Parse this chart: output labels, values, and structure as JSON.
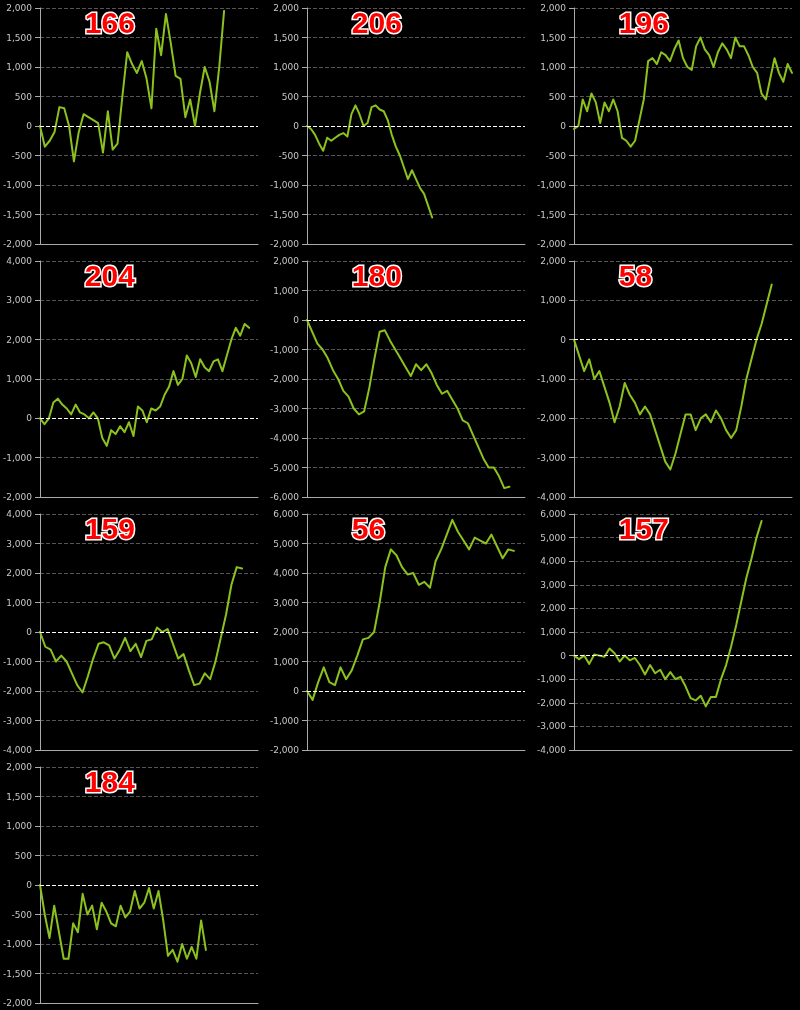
{
  "chart_data": [
    {
      "type": "line",
      "title": "166",
      "categories": [
        null,
        null,
        null,
        null,
        null,
        null,
        null,
        null,
        null,
        null,
        null,
        null,
        null,
        null,
        null,
        null,
        null,
        null,
        null,
        null,
        null,
        null,
        null,
        null,
        null,
        null,
        null,
        null,
        null,
        null,
        null,
        null,
        null,
        null,
        null,
        null,
        null,
        null,
        null,
        null,
        null,
        null,
        null,
        null,
        null,
        null
      ],
      "series": [
        {
          "color": "#8cc21e",
          "values": [
            0,
            -350,
            -250,
            -100,
            320,
            300,
            0,
            -600,
            -100,
            200,
            150,
            100,
            50,
            -450,
            250,
            -400,
            -300,
            500,
            1250,
            1050,
            900,
            1100,
            800,
            300,
            1650,
            1200,
            1900,
            1400,
            850,
            800,
            150,
            450,
            0,
            550,
            1000,
            750,
            250,
            1000,
            1950,
            null,
            null,
            null,
            null,
            null,
            null,
            null
          ]
        }
      ],
      "ylim": [
        -2000,
        2000
      ],
      "yticks": [
        {
          "value": -2000,
          "label": "-2,000"
        },
        {
          "value": -1500,
          "label": "-1,500"
        },
        {
          "value": -1000,
          "label": "-1,000"
        },
        -500,
        0,
        500,
        {
          "value": 1000,
          "label": "1,000"
        },
        {
          "value": 1500,
          "label": "1,500"
        },
        {
          "value": 2000,
          "label": "2,000"
        }
      ],
      "grid": "y",
      "tick_labels": "y",
      "marker": "none",
      "line_style": "solid",
      "ref_lines": [
        {
          "axis": "y",
          "value": 0,
          "color": "#ffffff",
          "line_style": "dashed"
        }
      ]
    },
    {
      "type": "line",
      "title": "206",
      "categories": [
        null,
        null,
        null,
        null,
        null,
        null,
        null,
        null,
        null,
        null,
        null,
        null,
        null,
        null,
        null,
        null,
        null,
        null,
        null,
        null,
        null,
        null,
        null,
        null,
        null,
        null,
        null,
        null,
        null,
        null,
        null,
        null,
        null,
        null,
        null,
        null,
        null,
        null,
        null,
        null,
        null,
        null,
        null,
        null,
        null,
        null,
        null,
        null,
        null,
        null,
        null,
        null,
        null,
        null,
        null
      ],
      "series": [
        {
          "color": "#8cc21e",
          "values": [
            0,
            -50,
            -150,
            -300,
            -420,
            -200,
            -250,
            -200,
            -150,
            -120,
            -180,
            200,
            350,
            200,
            0,
            50,
            320,
            350,
            280,
            250,
            100,
            -150,
            -350,
            -500,
            -700,
            -900,
            -750,
            -900,
            -1050,
            -1150,
            -1350,
            -1550,
            null,
            null,
            null,
            null,
            null,
            null,
            null,
            null,
            null,
            null,
            null,
            null,
            null,
            null,
            null,
            null,
            null,
            null,
            null,
            null,
            null,
            null,
            null
          ]
        }
      ],
      "ylim": [
        -2000,
        2000
      ],
      "yticks": [
        {
          "value": -2000,
          "label": "-2,000"
        },
        {
          "value": -1500,
          "label": "-1,500"
        },
        {
          "value": -1000,
          "label": "-1,000"
        },
        -500,
        0,
        500,
        {
          "value": 1000,
          "label": "1,000"
        },
        {
          "value": 1500,
          "label": "1,500"
        },
        {
          "value": 2000,
          "label": "2,000"
        }
      ],
      "grid": "y",
      "tick_labels": "y",
      "marker": "none",
      "line_style": "solid",
      "ref_lines": [
        {
          "axis": "y",
          "value": 0,
          "color": "#ffffff",
          "line_style": "dashed"
        }
      ]
    },
    {
      "type": "line",
      "title": "196",
      "categories": [
        null,
        null,
        null,
        null,
        null,
        null,
        null,
        null,
        null,
        null,
        null,
        null,
        null,
        null,
        null,
        null,
        null,
        null,
        null,
        null,
        null,
        null,
        null,
        null,
        null,
        null,
        null,
        null,
        null,
        null,
        null,
        null,
        null,
        null,
        null,
        null,
        null,
        null,
        null,
        null,
        null,
        null,
        null,
        null,
        null,
        null,
        null,
        null,
        null,
        null,
        null
      ],
      "series": [
        {
          "color": "#8cc21e",
          "values": [
            -50,
            0,
            450,
            250,
            550,
            400,
            50,
            400,
            250,
            450,
            250,
            -200,
            -250,
            -350,
            -250,
            100,
            450,
            1100,
            1150,
            1050,
            1250,
            1200,
            1100,
            1300,
            1450,
            1150,
            1000,
            950,
            1350,
            1500,
            1300,
            1200,
            1000,
            1250,
            1400,
            1300,
            1150,
            1500,
            1350,
            1350,
            1200,
            1000,
            900,
            550,
            450,
            800,
            1150,
            900,
            750,
            1050,
            900
          ]
        }
      ],
      "ylim": [
        -2000,
        2000
      ],
      "yticks": [
        {
          "value": -2000,
          "label": "-2,000"
        },
        {
          "value": -1500,
          "label": "-1,500"
        },
        {
          "value": -1000,
          "label": "-1,000"
        },
        -500,
        0,
        500,
        {
          "value": 1000,
          "label": "1,000"
        },
        {
          "value": 1500,
          "label": "1,500"
        },
        {
          "value": 2000,
          "label": "2,000"
        }
      ],
      "grid": "y",
      "tick_labels": "y",
      "marker": "none",
      "line_style": "solid",
      "ref_lines": [
        {
          "axis": "y",
          "value": 0,
          "color": "#ffffff",
          "line_style": "dashed"
        }
      ]
    },
    {
      "type": "line",
      "title": "204",
      "categories": [
        null,
        null,
        null,
        null,
        null,
        null,
        null,
        null,
        null,
        null,
        null,
        null,
        null,
        null,
        null,
        null,
        null,
        null,
        null,
        null,
        null,
        null,
        null,
        null,
        null,
        null,
        null,
        null,
        null,
        null,
        null,
        null,
        null,
        null,
        null,
        null,
        null,
        null,
        null,
        null,
        null,
        null,
        null,
        null,
        null,
        null,
        null,
        null,
        null,
        null
      ],
      "series": [
        {
          "color": "#8cc21e",
          "values": [
            0,
            -150,
            0,
            400,
            500,
            350,
            250,
            100,
            350,
            150,
            100,
            0,
            150,
            0,
            -500,
            -700,
            -300,
            -400,
            -200,
            -350,
            -100,
            -450,
            300,
            200,
            -100,
            250,
            200,
            300,
            600,
            800,
            1200,
            850,
            1000,
            1600,
            1400,
            1050,
            1500,
            1300,
            1200,
            1450,
            1500,
            1200,
            1600,
            2000,
            2300,
            2100,
            2400,
            2300,
            null,
            null
          ]
        }
      ],
      "ylim": [
        -2000,
        4000
      ],
      "yticks": [
        {
          "value": -2000,
          "label": "-2,000"
        },
        {
          "value": -1000,
          "label": "-1,000"
        },
        0,
        {
          "value": 1000,
          "label": "1,000"
        },
        {
          "value": 2000,
          "label": "2,000"
        },
        {
          "value": 3000,
          "label": "3,000"
        },
        {
          "value": 4000,
          "label": "4,000"
        }
      ],
      "grid": "y",
      "tick_labels": "y",
      "marker": "none",
      "line_style": "solid",
      "ref_lines": [
        {
          "axis": "y",
          "value": 0,
          "color": "#ffffff",
          "line_style": "dashed"
        }
      ]
    },
    {
      "type": "line",
      "title": "180",
      "categories": [
        null,
        null,
        null,
        null,
        null,
        null,
        null,
        null,
        null,
        null,
        null,
        null,
        null,
        null,
        null,
        null,
        null,
        null,
        null,
        null,
        null,
        null,
        null,
        null,
        null,
        null,
        null,
        null,
        null,
        null,
        null,
        null,
        null,
        null,
        null,
        null,
        null,
        null,
        null,
        null,
        null,
        null,
        null
      ],
      "series": [
        {
          "color": "#8cc21e",
          "values": [
            0,
            -400,
            -800,
            -1000,
            -1300,
            -1700,
            -2000,
            -2400,
            -2600,
            -3000,
            -3200,
            -3100,
            -2300,
            -1300,
            -400,
            -350,
            -700,
            -1000,
            -1300,
            -1600,
            -1900,
            -1500,
            -1700,
            -1500,
            -1800,
            -2200,
            -2500,
            -2400,
            -2700,
            -3000,
            -3400,
            -3500,
            -3900,
            -4300,
            -4700,
            -5000,
            -5000,
            -5300,
            -5700,
            -5650,
            null,
            null,
            null
          ]
        }
      ],
      "ylim": [
        -6000,
        2000
      ],
      "yticks": [
        {
          "value": -6000,
          "label": "-6,000"
        },
        {
          "value": -5000,
          "label": "-5,000"
        },
        {
          "value": -4000,
          "label": "-4,000"
        },
        {
          "value": -3000,
          "label": "-3,000"
        },
        {
          "value": -2000,
          "label": "-2,000"
        },
        {
          "value": -1000,
          "label": "-1,000"
        },
        0,
        {
          "value": 1000,
          "label": "1,000"
        },
        {
          "value": 2000,
          "label": "2,000"
        }
      ],
      "grid": "y",
      "tick_labels": "y",
      "marker": "none",
      "line_style": "solid",
      "ref_lines": [
        {
          "axis": "y",
          "value": 0,
          "color": "#ffffff",
          "line_style": "dashed"
        }
      ]
    },
    {
      "type": "line",
      "title": "58",
      "categories": [
        null,
        null,
        null,
        null,
        null,
        null,
        null,
        null,
        null,
        null,
        null,
        null,
        null,
        null,
        null,
        null,
        null,
        null,
        null,
        null,
        null,
        null,
        null,
        null,
        null,
        null,
        null,
        null,
        null,
        null,
        null,
        null,
        null,
        null,
        null,
        null,
        null,
        null,
        null,
        null,
        null,
        null,
        null,
        null
      ],
      "series": [
        {
          "color": "#8cc21e",
          "values": [
            0,
            -400,
            -800,
            -500,
            -1000,
            -800,
            -1200,
            -1600,
            -2100,
            -1700,
            -1100,
            -1400,
            -1600,
            -1900,
            -1700,
            -1900,
            -2300,
            -2700,
            -3100,
            -3300,
            -2900,
            -2400,
            -1900,
            -1900,
            -2300,
            -2000,
            -1900,
            -2100,
            -1800,
            -2000,
            -2300,
            -2500,
            -2300,
            -1700,
            -1000,
            -500,
            0,
            400,
            900,
            1400,
            null,
            null,
            null,
            null
          ]
        }
      ],
      "ylim": [
        -4000,
        2000
      ],
      "yticks": [
        {
          "value": -4000,
          "label": "-4,000"
        },
        {
          "value": -3000,
          "label": "-3,000"
        },
        {
          "value": -2000,
          "label": "-2,000"
        },
        {
          "value": -1000,
          "label": "-1,000"
        },
        0,
        {
          "value": 1000,
          "label": "1,000"
        },
        {
          "value": 2000,
          "label": "2,000"
        }
      ],
      "grid": "y",
      "tick_labels": "y",
      "marker": "none",
      "line_style": "solid",
      "ref_lines": [
        {
          "axis": "y",
          "value": 0,
          "color": "#ffffff",
          "line_style": "dashed"
        }
      ]
    },
    {
      "type": "line",
      "title": "159",
      "categories": [
        null,
        null,
        null,
        null,
        null,
        null,
        null,
        null,
        null,
        null,
        null,
        null,
        null,
        null,
        null,
        null,
        null,
        null,
        null,
        null,
        null,
        null,
        null,
        null,
        null,
        null,
        null,
        null,
        null,
        null,
        null,
        null,
        null,
        null,
        null,
        null,
        null,
        null,
        null,
        null,
        null,
        null
      ],
      "series": [
        {
          "color": "#8cc21e",
          "values": [
            0,
            -500,
            -600,
            -1000,
            -800,
            -1000,
            -1400,
            -1800,
            -2050,
            -1500,
            -900,
            -400,
            -350,
            -450,
            -900,
            -600,
            -200,
            -650,
            -400,
            -850,
            -300,
            -250,
            150,
            0,
            100,
            -400,
            -900,
            -750,
            -1300,
            -1800,
            -1750,
            -1400,
            -1600,
            -1000,
            -200,
            600,
            1600,
            2200,
            2150,
            null,
            null,
            null
          ]
        }
      ],
      "ylim": [
        -4000,
        4000
      ],
      "yticks": [
        {
          "value": -4000,
          "label": "-4,000"
        },
        {
          "value": -3000,
          "label": "-3,000"
        },
        {
          "value": -2000,
          "label": "-2,000"
        },
        {
          "value": -1000,
          "label": "-1,000"
        },
        0,
        {
          "value": 1000,
          "label": "1,000"
        },
        {
          "value": 2000,
          "label": "2,000"
        },
        {
          "value": 3000,
          "label": "3,000"
        },
        {
          "value": 4000,
          "label": "4,000"
        }
      ],
      "grid": "y",
      "tick_labels": "y",
      "marker": "none",
      "line_style": "solid",
      "ref_lines": [
        {
          "axis": "y",
          "value": 0,
          "color": "#ffffff",
          "line_style": "dashed"
        }
      ]
    },
    {
      "type": "line",
      "title": "56",
      "categories": [
        null,
        null,
        null,
        null,
        null,
        null,
        null,
        null,
        null,
        null,
        null,
        null,
        null,
        null,
        null,
        null,
        null,
        null,
        null,
        null,
        null,
        null,
        null,
        null,
        null,
        null,
        null,
        null,
        null,
        null,
        null,
        null,
        null,
        null,
        null,
        null,
        null,
        null,
        null,
        null
      ],
      "series": [
        {
          "color": "#8cc21e",
          "values": [
            0,
            -300,
            300,
            800,
            300,
            200,
            800,
            400,
            700,
            1200,
            1750,
            1800,
            2000,
            3000,
            4200,
            4800,
            4600,
            4200,
            3950,
            4000,
            3600,
            3700,
            3500,
            4400,
            4800,
            5300,
            5800,
            5400,
            5100,
            4800,
            5200,
            5100,
            5000,
            5300,
            4900,
            4500,
            4800,
            4750,
            null,
            null
          ]
        }
      ],
      "ylim": [
        -2000,
        6000
      ],
      "yticks": [
        {
          "value": -2000,
          "label": "-2,000"
        },
        {
          "value": -1000,
          "label": "-1,000"
        },
        0,
        {
          "value": 1000,
          "label": "1,000"
        },
        {
          "value": 2000,
          "label": "2,000"
        },
        {
          "value": 3000,
          "label": "3,000"
        },
        {
          "value": 4000,
          "label": "4,000"
        },
        {
          "value": 5000,
          "label": "5,000"
        },
        {
          "value": 6000,
          "label": "6,000"
        }
      ],
      "grid": "y",
      "tick_labels": "y",
      "marker": "none",
      "line_style": "solid",
      "ref_lines": [
        {
          "axis": "y",
          "value": 0,
          "color": "#ffffff",
          "line_style": "dashed"
        }
      ]
    },
    {
      "type": "line",
      "title": "157",
      "categories": [
        null,
        null,
        null,
        null,
        null,
        null,
        null,
        null,
        null,
        null,
        null,
        null,
        null,
        null,
        null,
        null,
        null,
        null,
        null,
        null,
        null,
        null,
        null,
        null,
        null,
        null,
        null,
        null,
        null,
        null,
        null,
        null,
        null,
        null,
        null,
        null,
        null,
        null,
        null,
        null,
        null,
        null,
        null,
        null
      ],
      "series": [
        {
          "color": "#8cc21e",
          "values": [
            0,
            -150,
            0,
            -350,
            50,
            0,
            -50,
            300,
            100,
            -250,
            0,
            -200,
            -100,
            -400,
            -800,
            -400,
            -750,
            -600,
            -1000,
            -700,
            -1000,
            -900,
            -1300,
            -1800,
            -1900,
            -1700,
            -2150,
            -1750,
            -1750,
            -1000,
            -400,
            400,
            1300,
            2300,
            3300,
            4100,
            5000,
            5700,
            null,
            null,
            null,
            null,
            null,
            null
          ]
        }
      ],
      "ylim": [
        -4000,
        6000
      ],
      "yticks": [
        {
          "value": -4000,
          "label": "-4,000"
        },
        {
          "value": -3000,
          "label": "-3,000"
        },
        {
          "value": -2000,
          "label": "-2,000"
        },
        {
          "value": -1000,
          "label": "-1,000"
        },
        0,
        {
          "value": 1000,
          "label": "1,000"
        },
        {
          "value": 2000,
          "label": "2,000"
        },
        {
          "value": 3000,
          "label": "3,000"
        },
        {
          "value": 4000,
          "label": "4,000"
        },
        {
          "value": 5000,
          "label": "5,000"
        },
        {
          "value": 6000,
          "label": "6,000"
        }
      ],
      "grid": "y",
      "tick_labels": "y",
      "marker": "none",
      "line_style": "solid",
      "ref_lines": [
        {
          "axis": "y",
          "value": 0,
          "color": "#ffffff",
          "line_style": "dashed"
        }
      ]
    },
    {
      "type": "line",
      "title": "184",
      "categories": [
        null,
        null,
        null,
        null,
        null,
        null,
        null,
        null,
        null,
        null,
        null,
        null,
        null,
        null,
        null,
        null,
        null,
        null,
        null,
        null,
        null,
        null,
        null,
        null,
        null,
        null,
        null,
        null,
        null,
        null,
        null,
        null,
        null,
        null,
        null,
        null,
        null,
        null,
        null,
        null,
        null,
        null,
        null,
        null,
        null,
        null,
        null
      ],
      "series": [
        {
          "color": "#8cc21e",
          "values": [
            0,
            -500,
            -900,
            -350,
            -800,
            -1250,
            -1250,
            -650,
            -800,
            -150,
            -500,
            -350,
            -750,
            -300,
            -450,
            -650,
            -700,
            -350,
            -550,
            -450,
            -100,
            -400,
            -300,
            -50,
            -400,
            -100,
            -600,
            -1200,
            -1100,
            -1300,
            -1000,
            -1250,
            -1050,
            -1250,
            -600,
            -1100,
            null,
            null,
            null,
            null,
            null,
            null,
            null,
            null,
            null,
            null,
            null
          ]
        }
      ],
      "ylim": [
        -2000,
        2000
      ],
      "yticks": [
        {
          "value": -2000,
          "label": "-2,000"
        },
        {
          "value": -1500,
          "label": "-1,500"
        },
        {
          "value": -1000,
          "label": "-1,000"
        },
        -500,
        0,
        500,
        {
          "value": 1000,
          "label": "1,000"
        },
        {
          "value": 1500,
          "label": "1,500"
        },
        {
          "value": 2000,
          "label": "2,000"
        }
      ],
      "grid": "y",
      "tick_labels": "y",
      "marker": "none",
      "line_style": "solid",
      "ref_lines": [
        {
          "axis": "y",
          "value": 0,
          "color": "#ffffff",
          "line_style": "dashed"
        }
      ]
    }
  ]
}
